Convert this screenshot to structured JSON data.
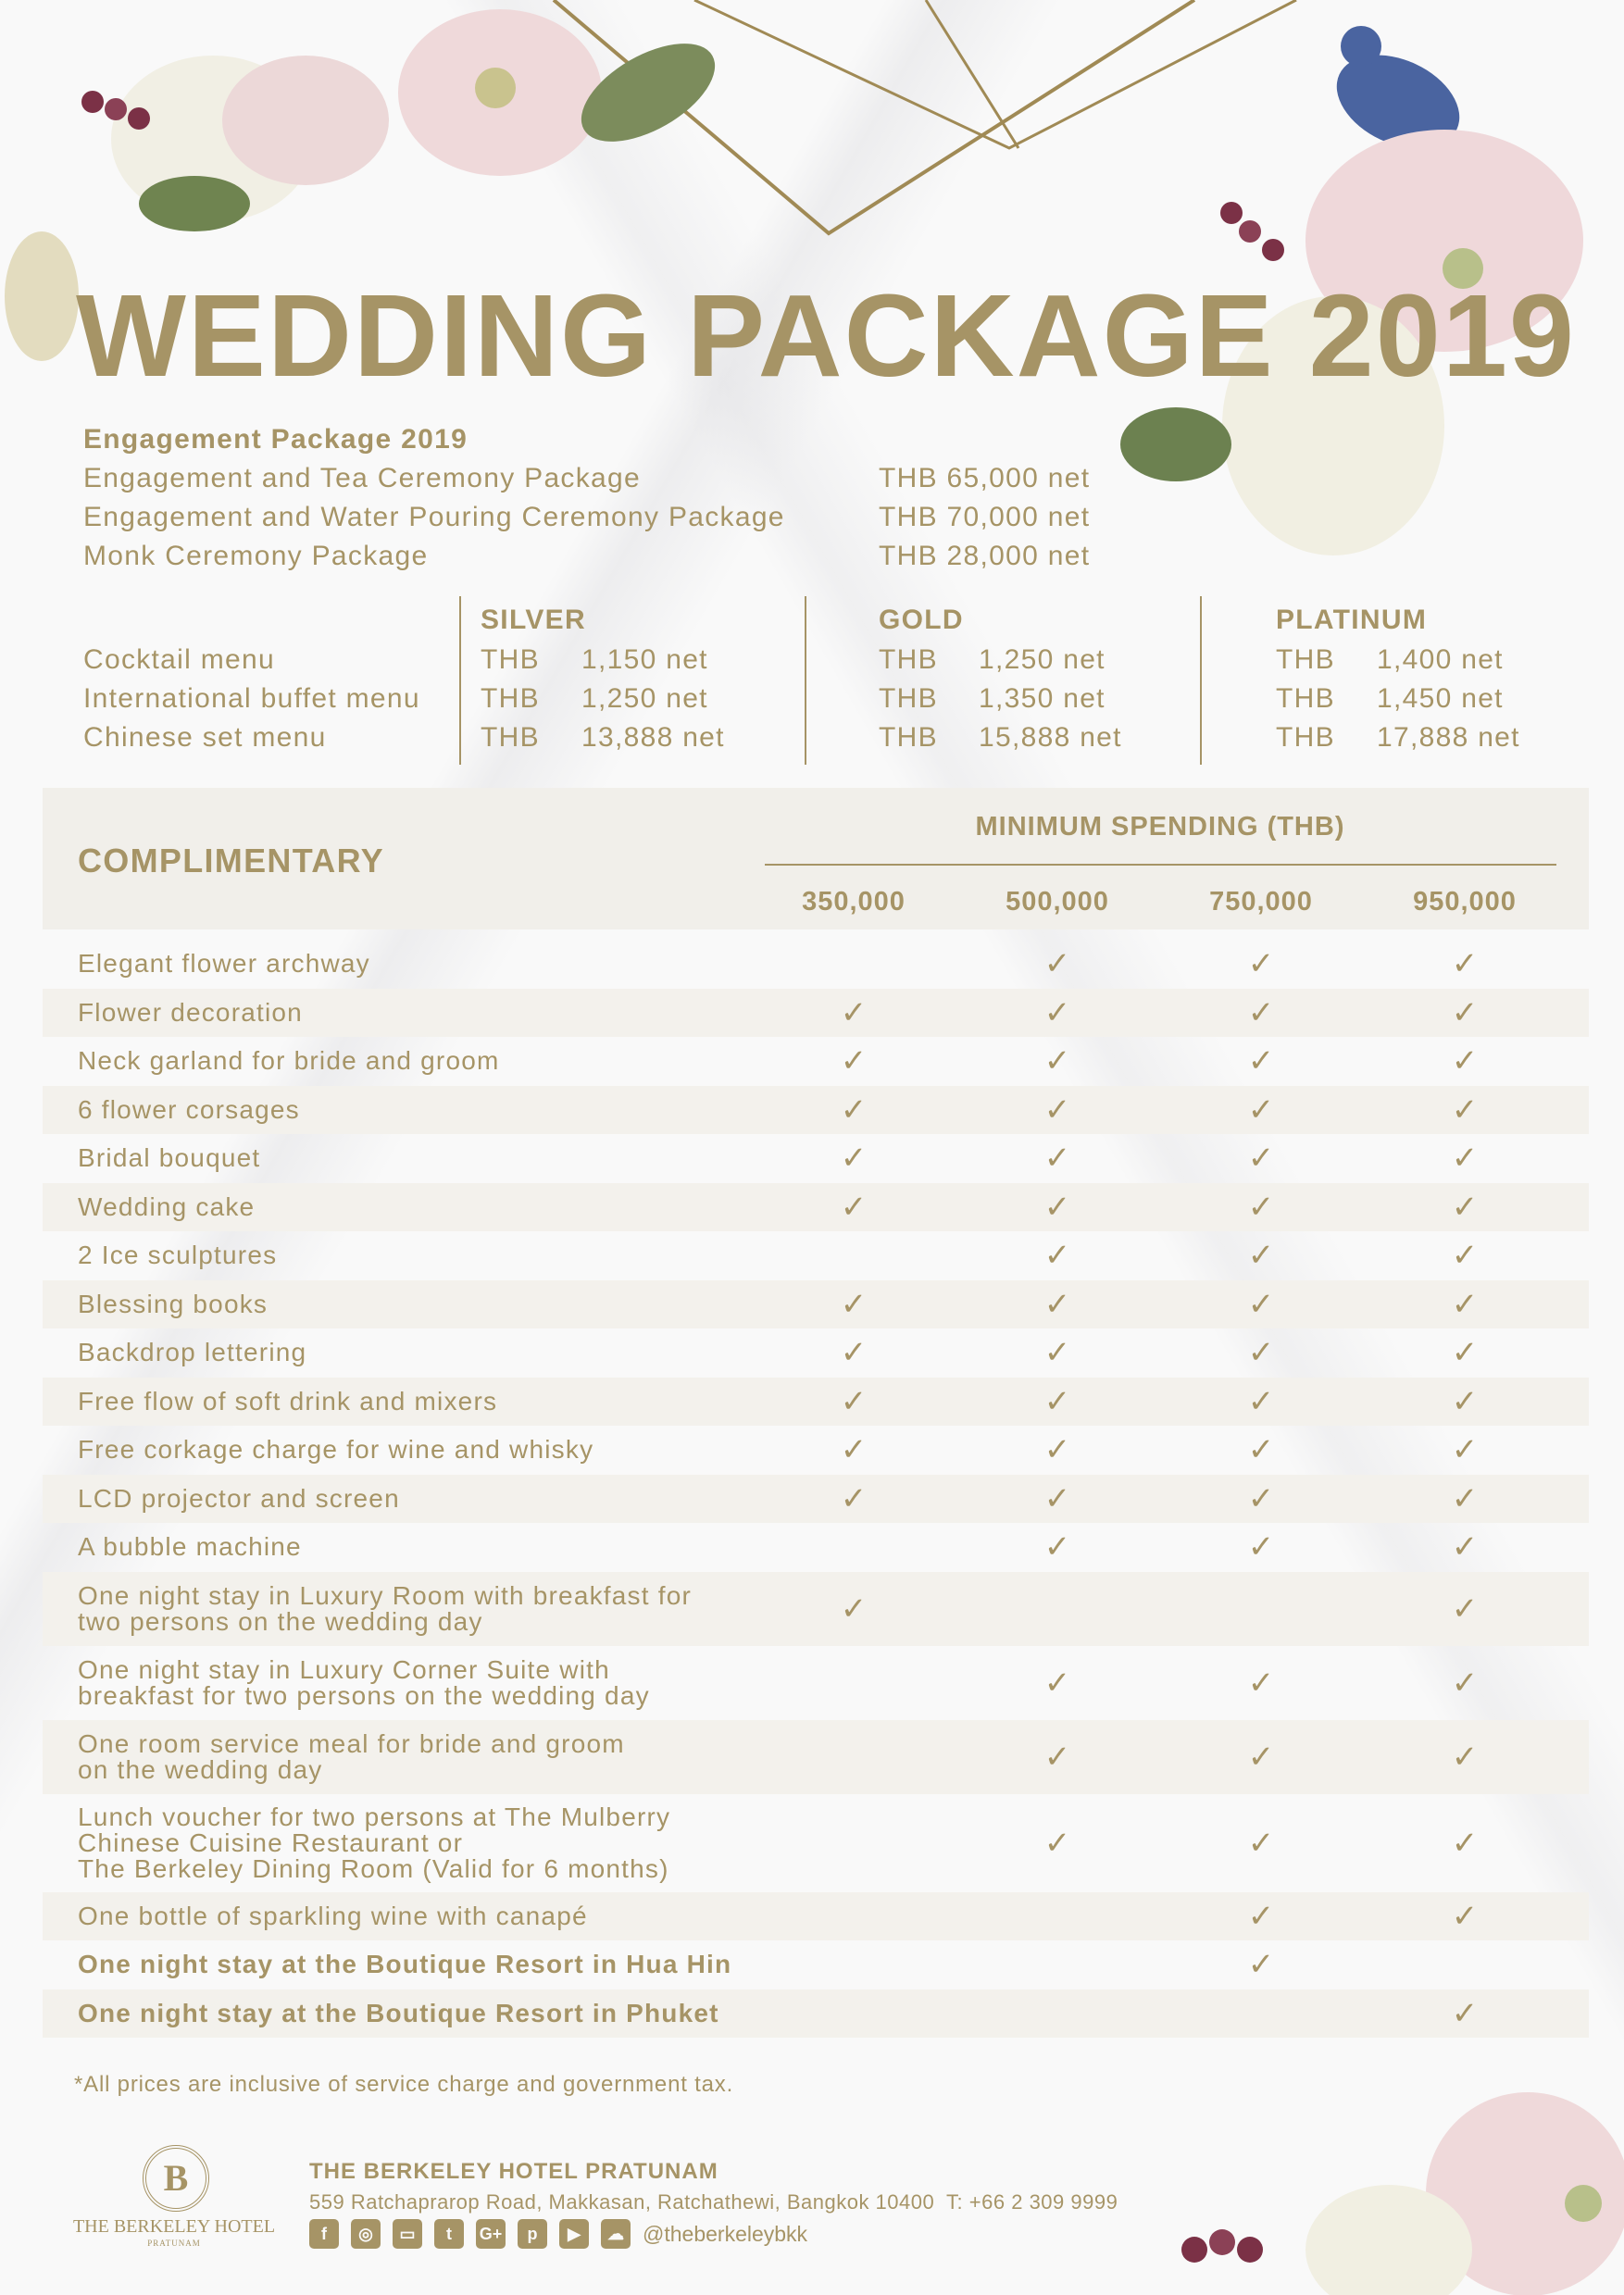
{
  "title": "WEDDING PACKAGE 2019",
  "colors": {
    "gold": "#a69466",
    "row_shade": "#f3f1ec"
  },
  "engagement": {
    "heading": "Engagement Package 2019",
    "items": [
      {
        "name": "Engagement and Tea Ceremony Package",
        "price": "THB 65,000 net"
      },
      {
        "name": "Engagement and Water Pouring Ceremony Package",
        "price": "THB 70,000 net"
      },
      {
        "name": "Monk Ceremony Package",
        "price": "THB 28,000 net"
      }
    ]
  },
  "menus": {
    "tiers": [
      "SILVER",
      "GOLD",
      "PLATINUM"
    ],
    "currency": "THB",
    "rows": [
      {
        "name": "Cocktail menu",
        "prices": [
          "1,150 net",
          "1,250 net",
          "1,400 net"
        ]
      },
      {
        "name": "International buffet menu",
        "prices": [
          "1,250 net",
          "1,350 net",
          "1,450 net"
        ]
      },
      {
        "name": "Chinese set menu",
        "prices": [
          "13,888 net",
          "15,888 net",
          "17,888 net"
        ]
      }
    ]
  },
  "complimentary": {
    "heading": "COMPLIMENTARY",
    "spending_heading": "MINIMUM SPENDING (THB)",
    "columns": [
      "350,000",
      "500,000",
      "750,000",
      "950,000"
    ],
    "check_icon": "checkmark-icon",
    "rows": [
      {
        "label": "Elegant flower archway",
        "checks": [
          false,
          true,
          true,
          true
        ]
      },
      {
        "label": "Flower decoration",
        "checks": [
          true,
          true,
          true,
          true
        ]
      },
      {
        "label": "Neck garland for bride and groom",
        "checks": [
          true,
          true,
          true,
          true
        ]
      },
      {
        "label": "6 flower corsages",
        "checks": [
          true,
          true,
          true,
          true
        ]
      },
      {
        "label": "Bridal bouquet",
        "checks": [
          true,
          true,
          true,
          true
        ]
      },
      {
        "label": "Wedding cake",
        "checks": [
          true,
          true,
          true,
          true
        ]
      },
      {
        "label": "2 Ice sculptures",
        "checks": [
          false,
          true,
          true,
          true
        ]
      },
      {
        "label": "Blessing books",
        "checks": [
          true,
          true,
          true,
          true
        ]
      },
      {
        "label": "Backdrop lettering",
        "checks": [
          true,
          true,
          true,
          true
        ]
      },
      {
        "label": "Free flow of soft drink and mixers",
        "checks": [
          true,
          true,
          true,
          true
        ]
      },
      {
        "label": "Free corkage charge for wine and whisky",
        "checks": [
          true,
          true,
          true,
          true
        ]
      },
      {
        "label": "LCD projector and screen",
        "checks": [
          true,
          true,
          true,
          true
        ]
      },
      {
        "label": "A bubble machine",
        "checks": [
          false,
          true,
          true,
          true
        ]
      },
      {
        "label": "One night stay in Luxury Room with breakfast for\ntwo persons on the wedding day",
        "checks": [
          true,
          false,
          false,
          true
        ]
      },
      {
        "label": "One night stay in Luxury Corner Suite with\nbreakfast for two persons on the wedding day",
        "checks": [
          false,
          true,
          true,
          true
        ]
      },
      {
        "label": "One room service meal for bride and groom\non the wedding day",
        "checks": [
          false,
          true,
          true,
          true
        ]
      },
      {
        "label": "Lunch voucher for two persons at The Mulberry\nChinese Cuisine Restaurant or\nThe Berkeley Dining Room (Valid for 6 months)",
        "checks": [
          false,
          true,
          true,
          true
        ]
      },
      {
        "label": "One bottle of sparkling wine with canapé",
        "checks": [
          false,
          false,
          true,
          true
        ]
      },
      {
        "label": "One night stay at the Boutique Resort in Hua Hin",
        "checks": [
          false,
          false,
          true,
          false
        ],
        "bold": true
      },
      {
        "label": "One night stay at the Boutique Resort in Phuket",
        "checks": [
          false,
          false,
          false,
          true
        ],
        "bold": true
      }
    ]
  },
  "footnote": "*All prices are inclusive of service charge and government tax.",
  "footer": {
    "logo_letter": "B",
    "logo_name": "THE BERKELEY HOTEL",
    "logo_sub": "PRATUNAM",
    "hotel_name": "THE BERKELEY HOTEL PRATUNAM",
    "address": "559 Ratchaprarop Road, Makkasan, Ratchathewi, Bangkok 10400  T: +66 2 309 9999",
    "social_icons": [
      {
        "name": "facebook-icon",
        "glyph": "f"
      },
      {
        "name": "instagram-icon",
        "glyph": "◎"
      },
      {
        "name": "line-icon",
        "glyph": "▭"
      },
      {
        "name": "twitter-icon",
        "glyph": "t"
      },
      {
        "name": "google-plus-icon",
        "glyph": "G+"
      },
      {
        "name": "pinterest-icon",
        "glyph": "p"
      },
      {
        "name": "youtube-icon",
        "glyph": "▶"
      },
      {
        "name": "wechat-icon",
        "glyph": "☁"
      }
    ],
    "handle": "@theberkeleybkk"
  }
}
